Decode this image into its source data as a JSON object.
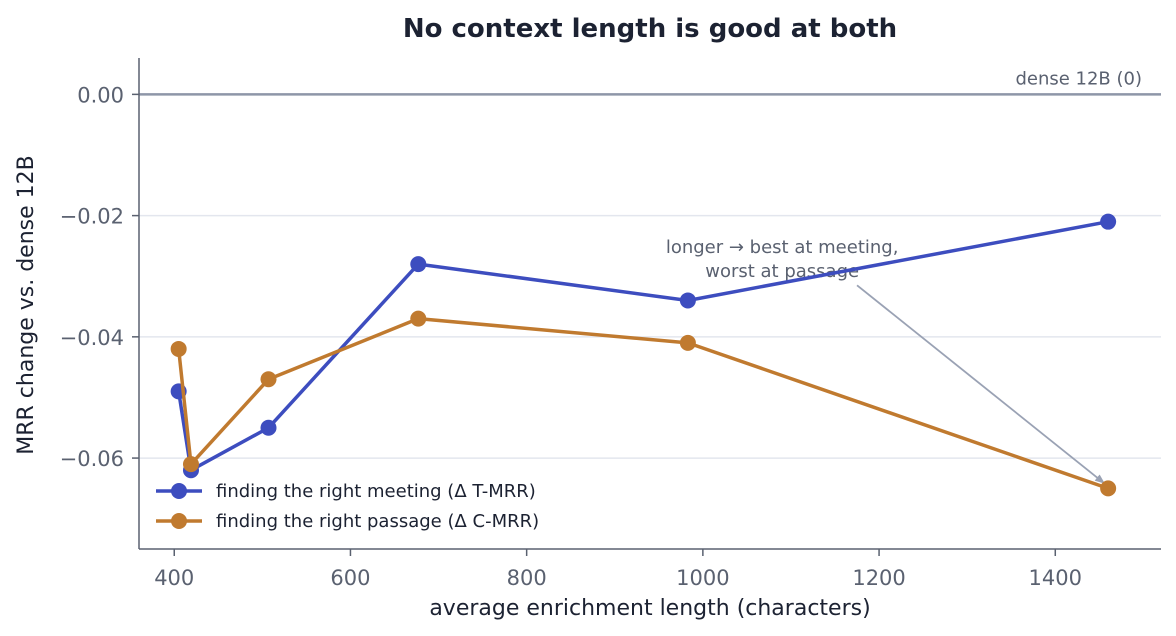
{
  "chart_data": {
    "type": "line",
    "title": "No context length is good at both",
    "xlabel": "average enrichment length (characters)",
    "ylabel": "MRR change vs. dense 12B",
    "xlim": [
      360,
      1520
    ],
    "ylim": [
      -0.075,
      0.006
    ],
    "xticks": [
      400,
      600,
      800,
      1000,
      1200,
      1400
    ],
    "yticks": [
      0.0,
      -0.02,
      -0.04,
      -0.06
    ],
    "xtick_labels": [
      "400",
      "600",
      "800",
      "1000",
      "1200",
      "1400"
    ],
    "ytick_labels": [
      "0.00",
      "−0.02",
      "−0.04",
      "−0.06"
    ],
    "grid": "horizontal",
    "legend_position": "lower-left",
    "reference_line": {
      "y": 0,
      "label": "dense 12B (0)"
    },
    "annotation": {
      "lines": [
        "longer → best at meeting,",
        "worst at passage"
      ],
      "text_at": [
        1090,
        -0.0262
      ],
      "arrow_to": [
        1460,
        -0.0648
      ],
      "arrow_from": [
        1175,
        -0.0315
      ]
    },
    "series": [
      {
        "name": "finding the right meeting (Δ T-MRR)",
        "color": "#3d4dbf",
        "x": [
          405,
          419,
          507,
          677,
          983,
          1460
        ],
        "y": [
          -0.049,
          -0.062,
          -0.055,
          -0.028,
          -0.034,
          -0.021
        ]
      },
      {
        "name": "finding the right passage (Δ C-MRR)",
        "color": "#c07a2f",
        "x": [
          405,
          419,
          507,
          677,
          983,
          1460
        ],
        "y": [
          -0.042,
          -0.061,
          -0.047,
          -0.037,
          -0.041,
          -0.065
        ]
      }
    ]
  }
}
